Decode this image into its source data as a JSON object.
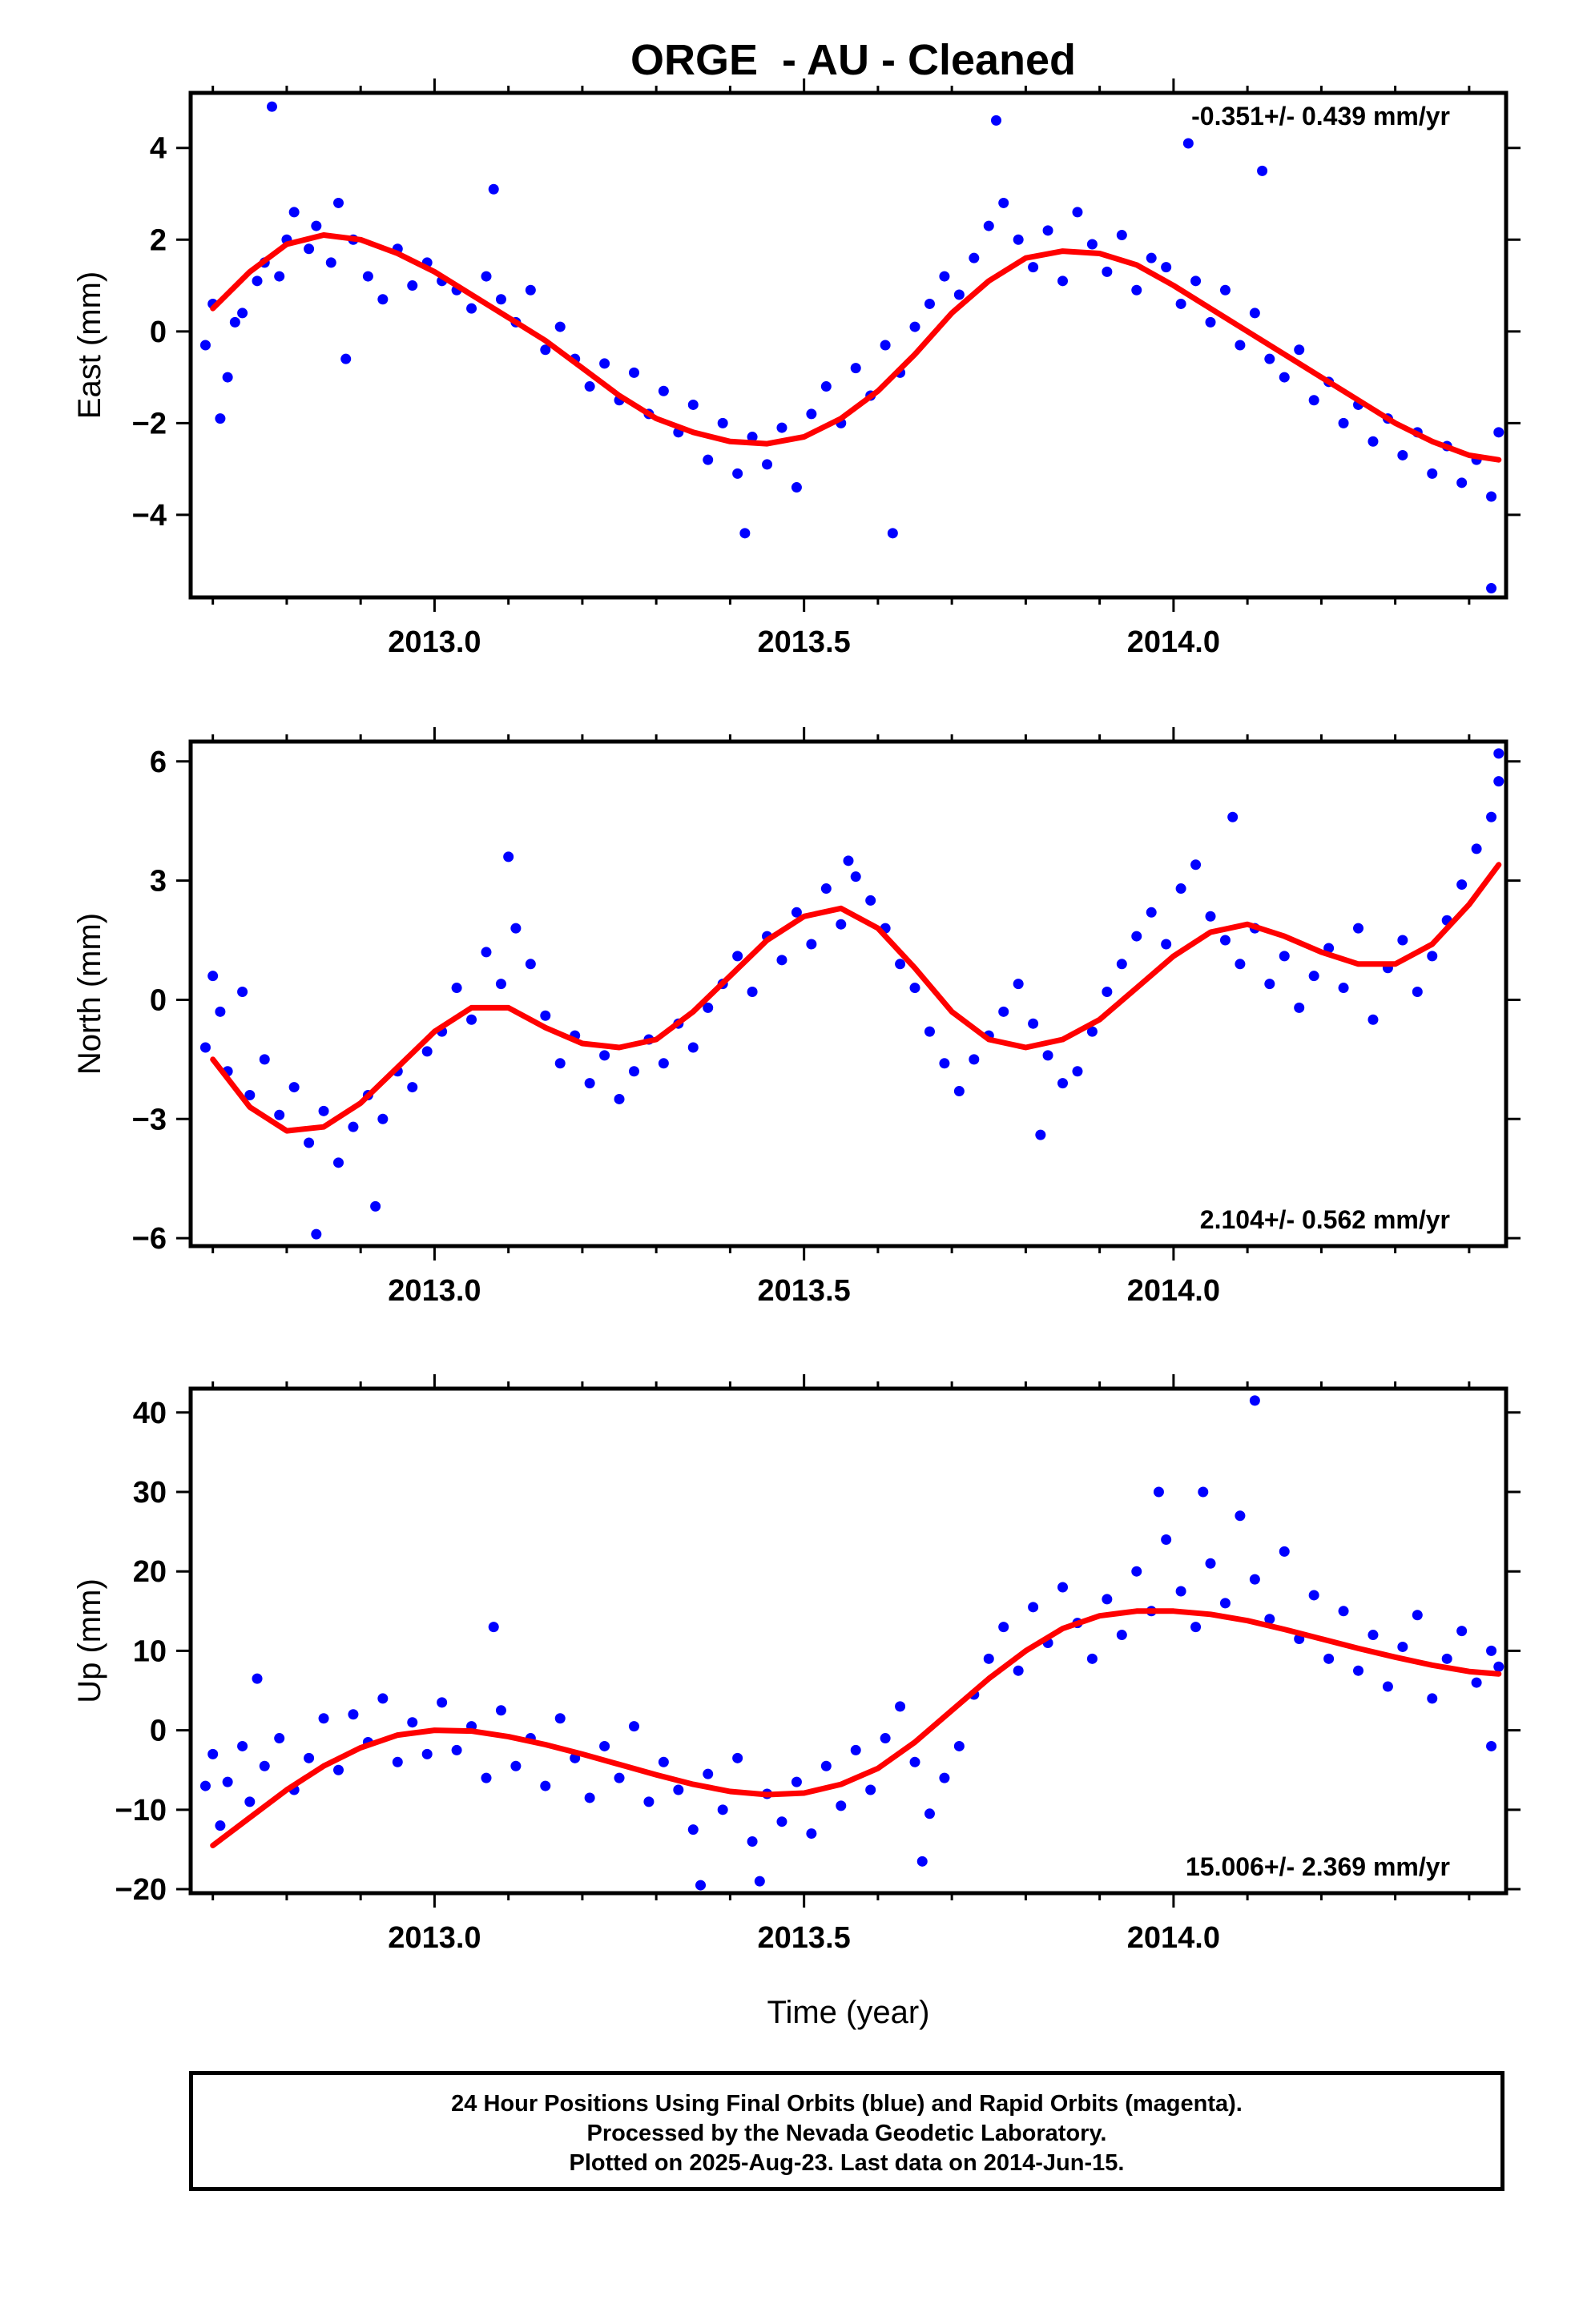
{
  "title": "ORGE  - AU - Cleaned",
  "caption": {
    "line1": "24 Hour Positions Using Final Orbits (blue) and Rapid Orbits (magenta).",
    "line2": "Processed by the Nevada Geodetic Laboratory.",
    "line3": "Plotted on 2025-Aug-23. Last data on 2014-Jun-15."
  },
  "colors": {
    "points": "#0000ff",
    "fit": "#ff0000",
    "axes": "#000000"
  },
  "chart_data": [
    {
      "type": "scatter",
      "name": "east",
      "ylabel": "East (mm)",
      "xlabel": "",
      "xlim": [
        2012.67,
        2014.45
      ],
      "ylim": [
        -5.8,
        5.2
      ],
      "xticks": [
        2013.0,
        2013.5,
        2014.0
      ],
      "xtick_labels": [
        "2013.0",
        "2013.5",
        "2014.0"
      ],
      "yticks": [
        -4,
        -2,
        0,
        2,
        4
      ],
      "ytick_labels": [
        "−4",
        "−2",
        "0",
        "2",
        "4"
      ],
      "rate_label": "-0.351+/- 0.439 mm/yr",
      "rate_label_position": "top-right",
      "fit": {
        "x": [
          2012.7,
          2012.75,
          2012.8,
          2012.85,
          2012.9,
          2012.95,
          2013.0,
          2013.05,
          2013.1,
          2013.15,
          2013.2,
          2013.25,
          2013.3,
          2013.35,
          2013.4,
          2013.45,
          2013.5,
          2013.55,
          2013.6,
          2013.65,
          2013.7,
          2013.75,
          2013.8,
          2013.85,
          2013.9,
          2013.95,
          2014.0,
          2014.05,
          2014.1,
          2014.15,
          2014.2,
          2014.25,
          2014.3,
          2014.35,
          2014.4,
          2014.44
        ],
        "y": [
          0.5,
          1.3,
          1.9,
          2.1,
          2.0,
          1.7,
          1.3,
          0.8,
          0.3,
          -0.2,
          -0.8,
          -1.4,
          -1.9,
          -2.2,
          -2.4,
          -2.45,
          -2.3,
          -1.9,
          -1.3,
          -0.5,
          0.4,
          1.1,
          1.6,
          1.75,
          1.7,
          1.45,
          1.0,
          0.5,
          0.0,
          -0.5,
          -1.0,
          -1.5,
          -2.0,
          -2.4,
          -2.7,
          -2.8
        ]
      },
      "points": {
        "x": [
          2012.69,
          2012.7,
          2012.71,
          2012.72,
          2012.73,
          2012.74,
          2012.76,
          2012.77,
          2012.79,
          2012.8,
          2012.81,
          2012.83,
          2012.84,
          2012.86,
          2012.87,
          2012.89,
          2012.91,
          2012.93,
          2012.95,
          2012.97,
          2012.99,
          2013.01,
          2013.03,
          2013.05,
          2013.07,
          2013.09,
          2013.11,
          2013.13,
          2013.15,
          2013.17,
          2013.19,
          2013.21,
          2013.23,
          2013.25,
          2013.27,
          2013.29,
          2013.31,
          2013.33,
          2013.35,
          2013.37,
          2013.39,
          2013.41,
          2013.43,
          2013.45,
          2013.47,
          2013.49,
          2013.51,
          2013.53,
          2013.55,
          2013.57,
          2013.59,
          2013.61,
          2013.63,
          2013.65,
          2013.67,
          2013.69,
          2013.71,
          2013.73,
          2013.75,
          2013.77,
          2013.79,
          2013.81,
          2013.83,
          2013.85,
          2013.87,
          2013.89,
          2013.91,
          2013.93,
          2013.95,
          2013.97,
          2013.99,
          2014.01,
          2014.03,
          2014.05,
          2014.07,
          2014.09,
          2014.11,
          2014.13,
          2014.15,
          2014.17,
          2014.19,
          2014.21,
          2014.23,
          2014.25,
          2014.27,
          2014.29,
          2014.31,
          2014.33,
          2014.35,
          2014.37,
          2014.39,
          2014.41,
          2014.43,
          2014.44,
          2012.78,
          2012.88,
          2013.08,
          2013.42,
          2013.62,
          2013.76,
          2014.02,
          2014.12,
          2014.43
        ],
        "y": [
          -0.3,
          0.6,
          -1.9,
          -1.0,
          0.2,
          0.4,
          1.1,
          1.5,
          1.2,
          2.0,
          2.6,
          1.8,
          2.3,
          1.5,
          2.8,
          2.0,
          1.2,
          0.7,
          1.8,
          1.0,
          1.5,
          1.1,
          0.9,
          0.5,
          1.2,
          0.7,
          0.2,
          0.9,
          -0.4,
          0.1,
          -0.6,
          -1.2,
          -0.7,
          -1.5,
          -0.9,
          -1.8,
          -1.3,
          -2.2,
          -1.6,
          -2.8,
          -2.0,
          -3.1,
          -2.3,
          -2.9,
          -2.1,
          -3.4,
          -1.8,
          -1.2,
          -2.0,
          -0.8,
          -1.4,
          -0.3,
          -0.9,
          0.1,
          0.6,
          1.2,
          0.8,
          1.6,
          2.3,
          2.8,
          2.0,
          1.4,
          2.2,
          1.1,
          2.6,
          1.9,
          1.3,
          2.1,
          0.9,
          1.6,
          1.4,
          0.6,
          1.1,
          0.2,
          0.9,
          -0.3,
          0.4,
          -0.6,
          -1.0,
          -0.4,
          -1.5,
          -1.1,
          -2.0,
          -1.6,
          -2.4,
          -1.9,
          -2.7,
          -2.2,
          -3.1,
          -2.5,
          -3.3,
          -2.8,
          -3.6,
          -2.2,
          4.9,
          -0.6,
          3.1,
          -4.4,
          -4.4,
          4.6,
          4.1,
          3.5,
          -5.6
        ]
      }
    },
    {
      "type": "scatter",
      "name": "north",
      "ylabel": "North (mm)",
      "xlabel": "",
      "xlim": [
        2012.67,
        2014.45
      ],
      "ylim": [
        -6.2,
        6.5
      ],
      "xticks": [
        2013.0,
        2013.5,
        2014.0
      ],
      "xtick_labels": [
        "2013.0",
        "2013.5",
        "2014.0"
      ],
      "yticks": [
        -6,
        -3,
        0,
        3,
        6
      ],
      "ytick_labels": [
        "−6",
        "−3",
        "0",
        "3",
        "6"
      ],
      "rate_label": "2.104+/- 0.562 mm/yr",
      "rate_label_position": "bottom-right",
      "fit": {
        "x": [
          2012.7,
          2012.75,
          2012.8,
          2012.85,
          2012.9,
          2012.95,
          2013.0,
          2013.05,
          2013.1,
          2013.15,
          2013.2,
          2013.25,
          2013.3,
          2013.35,
          2013.4,
          2013.45,
          2013.5,
          2013.55,
          2013.6,
          2013.65,
          2013.7,
          2013.75,
          2013.8,
          2013.85,
          2013.9,
          2013.95,
          2014.0,
          2014.05,
          2014.1,
          2014.15,
          2014.2,
          2014.25,
          2014.3,
          2014.35,
          2014.4,
          2014.44
        ],
        "y": [
          -1.5,
          -2.7,
          -3.3,
          -3.2,
          -2.6,
          -1.7,
          -0.8,
          -0.2,
          -0.2,
          -0.7,
          -1.1,
          -1.2,
          -1.0,
          -0.3,
          0.6,
          1.5,
          2.1,
          2.3,
          1.8,
          0.8,
          -0.3,
          -1.0,
          -1.2,
          -1.0,
          -0.5,
          0.3,
          1.1,
          1.7,
          1.9,
          1.6,
          1.2,
          0.9,
          0.9,
          1.4,
          2.4,
          3.4
        ]
      },
      "points": {
        "x": [
          2012.69,
          2012.7,
          2012.71,
          2012.72,
          2012.74,
          2012.75,
          2012.77,
          2012.79,
          2012.81,
          2012.83,
          2012.85,
          2012.87,
          2012.89,
          2012.91,
          2012.93,
          2012.95,
          2012.97,
          2012.99,
          2013.01,
          2013.03,
          2013.05,
          2013.07,
          2013.09,
          2013.11,
          2013.13,
          2013.15,
          2013.17,
          2013.19,
          2013.21,
          2013.23,
          2013.25,
          2013.27,
          2013.29,
          2013.31,
          2013.33,
          2013.35,
          2013.37,
          2013.39,
          2013.41,
          2013.43,
          2013.45,
          2013.47,
          2013.49,
          2013.51,
          2013.53,
          2013.55,
          2013.57,
          2013.59,
          2013.61,
          2013.63,
          2013.65,
          2013.67,
          2013.69,
          2013.71,
          2013.73,
          2013.75,
          2013.77,
          2013.79,
          2013.81,
          2013.83,
          2013.85,
          2013.87,
          2013.89,
          2013.91,
          2013.93,
          2013.95,
          2013.97,
          2013.99,
          2014.01,
          2014.03,
          2014.05,
          2014.07,
          2014.09,
          2014.11,
          2014.13,
          2014.15,
          2014.17,
          2014.19,
          2014.21,
          2014.23,
          2014.25,
          2014.27,
          2014.29,
          2014.31,
          2014.33,
          2014.35,
          2014.37,
          2014.39,
          2014.41,
          2014.43,
          2014.44,
          2012.84,
          2012.92,
          2013.1,
          2013.56,
          2013.82,
          2014.08,
          2014.44
        ],
        "y": [
          -1.2,
          0.6,
          -0.3,
          -1.8,
          0.2,
          -2.4,
          -1.5,
          -2.9,
          -2.2,
          -3.6,
          -2.8,
          -4.1,
          -3.2,
          -2.4,
          -3.0,
          -1.8,
          -2.2,
          -1.3,
          -0.8,
          0.3,
          -0.5,
          1.2,
          0.4,
          1.8,
          0.9,
          -0.4,
          -1.6,
          -0.9,
          -2.1,
          -1.4,
          -2.5,
          -1.8,
          -1.0,
          -1.6,
          -0.6,
          -1.2,
          -0.2,
          0.4,
          1.1,
          0.2,
          1.6,
          1.0,
          2.2,
          1.4,
          2.8,
          1.9,
          3.1,
          2.5,
          1.8,
          0.9,
          0.3,
          -0.8,
          -1.6,
          -2.3,
          -1.5,
          -0.9,
          -0.3,
          0.4,
          -0.6,
          -1.4,
          -2.1,
          -1.8,
          -0.8,
          0.2,
          0.9,
          1.6,
          2.2,
          1.4,
          2.8,
          3.4,
          2.1,
          1.5,
          0.9,
          1.8,
          0.4,
          1.1,
          -0.2,
          0.6,
          1.3,
          0.3,
          1.8,
          -0.5,
          0.8,
          1.5,
          0.2,
          1.1,
          2.0,
          2.9,
          3.8,
          4.6,
          5.5,
          -5.9,
          -5.2,
          3.6,
          3.5,
          -3.4,
          4.6,
          6.2
        ]
      }
    },
    {
      "type": "scatter",
      "name": "up",
      "ylabel": "Up (mm)",
      "xlabel": "Time (year)",
      "xlim": [
        2012.67,
        2014.45
      ],
      "ylim": [
        -20.5,
        43
      ],
      "xticks": [
        2013.0,
        2013.5,
        2014.0
      ],
      "xtick_labels": [
        "2013.0",
        "2013.5",
        "2014.0"
      ],
      "yticks": [
        -20,
        -10,
        0,
        10,
        20,
        30,
        40
      ],
      "ytick_labels": [
        "−20",
        "−10",
        "0",
        "10",
        "20",
        "30",
        "40"
      ],
      "rate_label": "15.006+/- 2.369 mm/yr",
      "rate_label_position": "bottom-right",
      "fit": {
        "x": [
          2012.7,
          2012.75,
          2012.8,
          2012.85,
          2012.9,
          2012.95,
          2013.0,
          2013.05,
          2013.1,
          2013.15,
          2013.2,
          2013.25,
          2013.3,
          2013.35,
          2013.4,
          2013.45,
          2013.5,
          2013.55,
          2013.6,
          2013.65,
          2013.7,
          2013.75,
          2013.8,
          2013.85,
          2013.9,
          2013.95,
          2014.0,
          2014.05,
          2014.1,
          2014.15,
          2014.2,
          2014.25,
          2014.3,
          2014.35,
          2014.4,
          2014.44
        ],
        "y": [
          -14.5,
          -11.0,
          -7.5,
          -4.5,
          -2.2,
          -0.6,
          0.0,
          -0.1,
          -0.8,
          -1.8,
          -3.0,
          -4.3,
          -5.6,
          -6.8,
          -7.7,
          -8.1,
          -7.9,
          -6.8,
          -4.8,
          -1.5,
          2.5,
          6.5,
          10.0,
          12.8,
          14.4,
          15.0,
          15.0,
          14.6,
          13.8,
          12.7,
          11.5,
          10.3,
          9.2,
          8.2,
          7.4,
          7.1
        ]
      },
      "points": {
        "x": [
          2012.69,
          2012.7,
          2012.71,
          2012.72,
          2012.74,
          2012.75,
          2012.77,
          2012.79,
          2012.81,
          2012.83,
          2012.85,
          2012.87,
          2012.89,
          2012.91,
          2012.93,
          2012.95,
          2012.97,
          2012.99,
          2013.01,
          2013.03,
          2013.05,
          2013.07,
          2013.09,
          2013.11,
          2013.13,
          2013.15,
          2013.17,
          2013.19,
          2013.21,
          2013.23,
          2013.25,
          2013.27,
          2013.29,
          2013.31,
          2013.33,
          2013.35,
          2013.37,
          2013.39,
          2013.41,
          2013.43,
          2013.45,
          2013.47,
          2013.49,
          2013.51,
          2013.53,
          2013.55,
          2013.57,
          2013.59,
          2013.61,
          2013.63,
          2013.65,
          2013.67,
          2013.69,
          2013.71,
          2013.73,
          2013.75,
          2013.77,
          2013.79,
          2013.81,
          2013.83,
          2013.85,
          2013.87,
          2013.89,
          2013.91,
          2013.93,
          2013.95,
          2013.97,
          2013.99,
          2014.01,
          2014.03,
          2014.05,
          2014.07,
          2014.09,
          2014.11,
          2014.13,
          2014.15,
          2014.17,
          2014.19,
          2014.21,
          2014.23,
          2014.25,
          2014.27,
          2014.29,
          2014.31,
          2014.33,
          2014.35,
          2014.37,
          2014.39,
          2014.41,
          2014.43,
          2014.44,
          2012.76,
          2013.08,
          2013.36,
          2013.44,
          2013.66,
          2013.98,
          2014.04,
          2014.11,
          2014.43
        ],
        "y": [
          -7.0,
          -3.0,
          -12.0,
          -6.5,
          -2.0,
          -9.0,
          -4.5,
          -1.0,
          -7.5,
          -3.5,
          1.5,
          -5.0,
          2.0,
          -1.5,
          4.0,
          -4.0,
          1.0,
          -3.0,
          3.5,
          -2.5,
          0.5,
          -6.0,
          2.5,
          -4.5,
          -1.0,
          -7.0,
          1.5,
          -3.5,
          -8.5,
          -2.0,
          -6.0,
          0.5,
          -9.0,
          -4.0,
          -7.5,
          -12.5,
          -5.5,
          -10.0,
          -3.5,
          -14.0,
          -8.0,
          -11.5,
          -6.5,
          -13.0,
          -4.5,
          -9.5,
          -2.5,
          -7.5,
          -1.0,
          3.0,
          -4.0,
          -10.5,
          -6.0,
          -2.0,
          4.5,
          9.0,
          13.0,
          7.5,
          15.5,
          11.0,
          18.0,
          13.5,
          9.0,
          16.5,
          12.0,
          20.0,
          15.0,
          24.0,
          17.5,
          13.0,
          21.0,
          16.0,
          27.0,
          19.0,
          14.0,
          22.5,
          11.5,
          17.0,
          9.0,
          15.0,
          7.5,
          12.0,
          5.5,
          10.5,
          14.5,
          4.0,
          9.0,
          12.5,
          6.0,
          10.0,
          8.0,
          6.5,
          13.0,
          -19.5,
          -19.0,
          -16.5,
          30.0,
          30.0,
          41.5,
          -2.0
        ]
      }
    }
  ]
}
